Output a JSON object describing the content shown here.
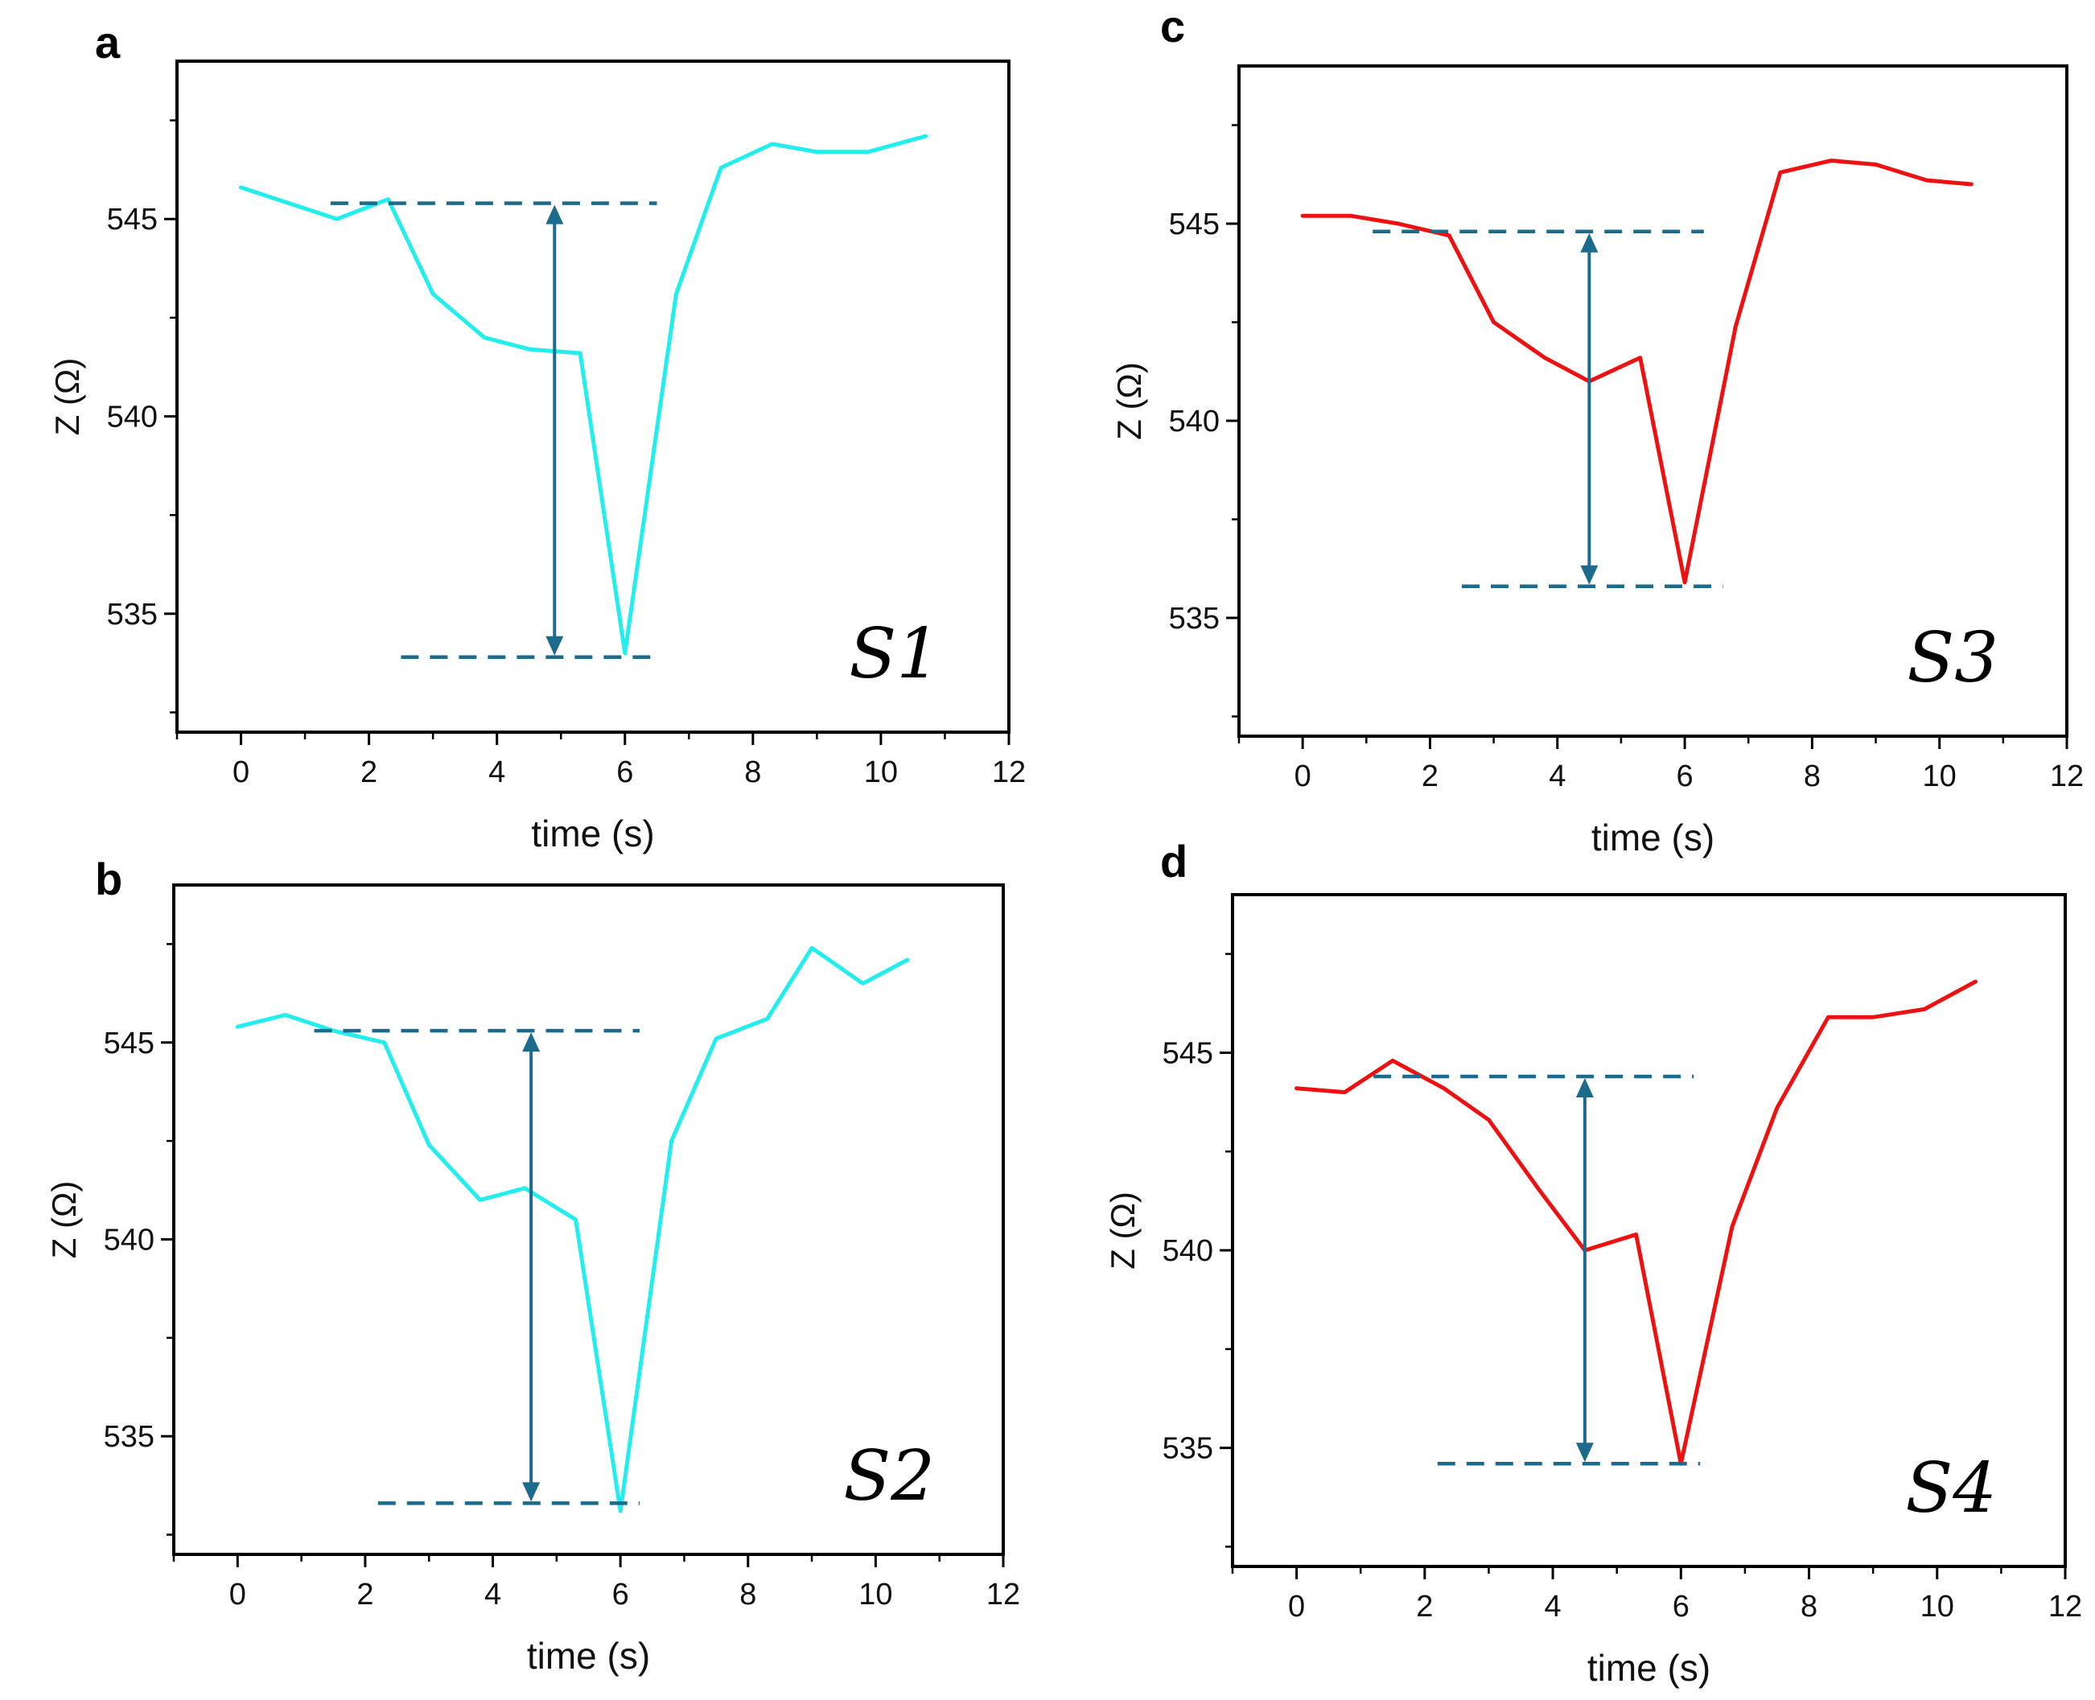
{
  "chart_data": [
    {
      "panel": "a",
      "type": "line",
      "series_label": "S1",
      "xlabel": "time (s)",
      "ylabel": "Z (Ω)",
      "xlim": [
        -1,
        12
      ],
      "ylim": [
        532.0,
        549.0
      ],
      "xticks": [
        0,
        2,
        4,
        6,
        8,
        10,
        12
      ],
      "yticks": [
        535,
        540,
        545
      ],
      "line_color": "#22eeee",
      "annotation_color": "#1d6b8c",
      "x": [
        0,
        0.75,
        1.5,
        2.3,
        3.0,
        3.8,
        4.5,
        5.3,
        6.0,
        6.8,
        7.5,
        8.3,
        9.0,
        9.8,
        10.7
      ],
      "y": [
        545.8,
        545.4,
        545.0,
        545.5,
        543.1,
        542.0,
        541.7,
        541.6,
        534.0,
        543.1,
        546.3,
        546.9,
        546.7,
        546.7,
        547.1
      ],
      "baseline_level": 545.4,
      "minimum_level": 533.9,
      "baseline_xrange": [
        1.4,
        6.5
      ],
      "minimum_xrange": [
        2.5,
        6.5
      ],
      "arrow_x": 4.9
    },
    {
      "panel": "b",
      "type": "line",
      "series_label": "S2",
      "xlabel": "time (s)",
      "ylabel": "Z (Ω)",
      "xlim": [
        -1,
        12
      ],
      "ylim": [
        532.0,
        549.0
      ],
      "xticks": [
        0,
        2,
        4,
        6,
        8,
        10,
        12
      ],
      "yticks": [
        535,
        540,
        545
      ],
      "line_color": "#22eeee",
      "annotation_color": "#1d6b8c",
      "x": [
        0,
        0.75,
        1.5,
        2.3,
        3.0,
        3.8,
        4.5,
        5.3,
        6.0,
        6.8,
        7.5,
        8.3,
        9.0,
        9.8,
        10.5
      ],
      "y": [
        545.4,
        545.7,
        545.3,
        545.0,
        542.4,
        541.0,
        541.3,
        540.5,
        533.1,
        542.5,
        545.1,
        545.6,
        547.4,
        546.5,
        547.1
      ],
      "baseline_level": 545.3,
      "minimum_level": 533.3,
      "baseline_xrange": [
        1.2,
        6.3
      ],
      "minimum_xrange": [
        2.2,
        6.3
      ],
      "arrow_x": 4.6
    },
    {
      "panel": "c",
      "type": "line",
      "series_label": "S3",
      "xlabel": "time (s)",
      "ylabel": "Z (Ω)",
      "xlim": [
        -1,
        12
      ],
      "ylim": [
        532.0,
        549.0
      ],
      "xticks": [
        0,
        2,
        4,
        6,
        8,
        10,
        12
      ],
      "yticks": [
        535,
        540,
        545
      ],
      "line_color": "#ee1111",
      "annotation_color": "#1d6b8c",
      "x": [
        0,
        0.75,
        1.5,
        2.3,
        3.0,
        3.8,
        4.5,
        5.3,
        6.0,
        6.8,
        7.5,
        8.3,
        9.0,
        9.8,
        10.5
      ],
      "y": [
        545.2,
        545.2,
        545.0,
        544.7,
        542.5,
        541.6,
        541.0,
        541.6,
        535.9,
        542.4,
        546.3,
        546.6,
        546.5,
        546.1,
        546.0
      ],
      "baseline_level": 544.8,
      "minimum_level": 535.8,
      "baseline_xrange": [
        1.1,
        6.3
      ],
      "minimum_xrange": [
        2.5,
        6.6
      ],
      "arrow_x": 4.5
    },
    {
      "panel": "d",
      "type": "line",
      "series_label": "S4",
      "xlabel": "time (s)",
      "ylabel": "Z (Ω)",
      "xlim": [
        -1,
        12
      ],
      "ylim": [
        532.0,
        549.0
      ],
      "xticks": [
        0,
        2,
        4,
        6,
        8,
        10,
        12
      ],
      "yticks": [
        535,
        540,
        545
      ],
      "line_color": "#ee1111",
      "annotation_color": "#1d6b8c",
      "x": [
        0,
        0.75,
        1.5,
        2.3,
        3.0,
        3.8,
        4.5,
        5.3,
        6.0,
        6.8,
        7.5,
        8.3,
        9.0,
        9.8,
        10.6
      ],
      "y": [
        544.1,
        544.0,
        544.8,
        544.1,
        543.3,
        541.5,
        540.0,
        540.4,
        534.6,
        540.6,
        543.6,
        545.9,
        545.9,
        546.1,
        546.8
      ],
      "baseline_level": 544.4,
      "minimum_level": 534.6,
      "baseline_xrange": [
        1.2,
        6.2
      ],
      "minimum_xrange": [
        2.2,
        6.3
      ],
      "arrow_x": 4.5
    }
  ]
}
